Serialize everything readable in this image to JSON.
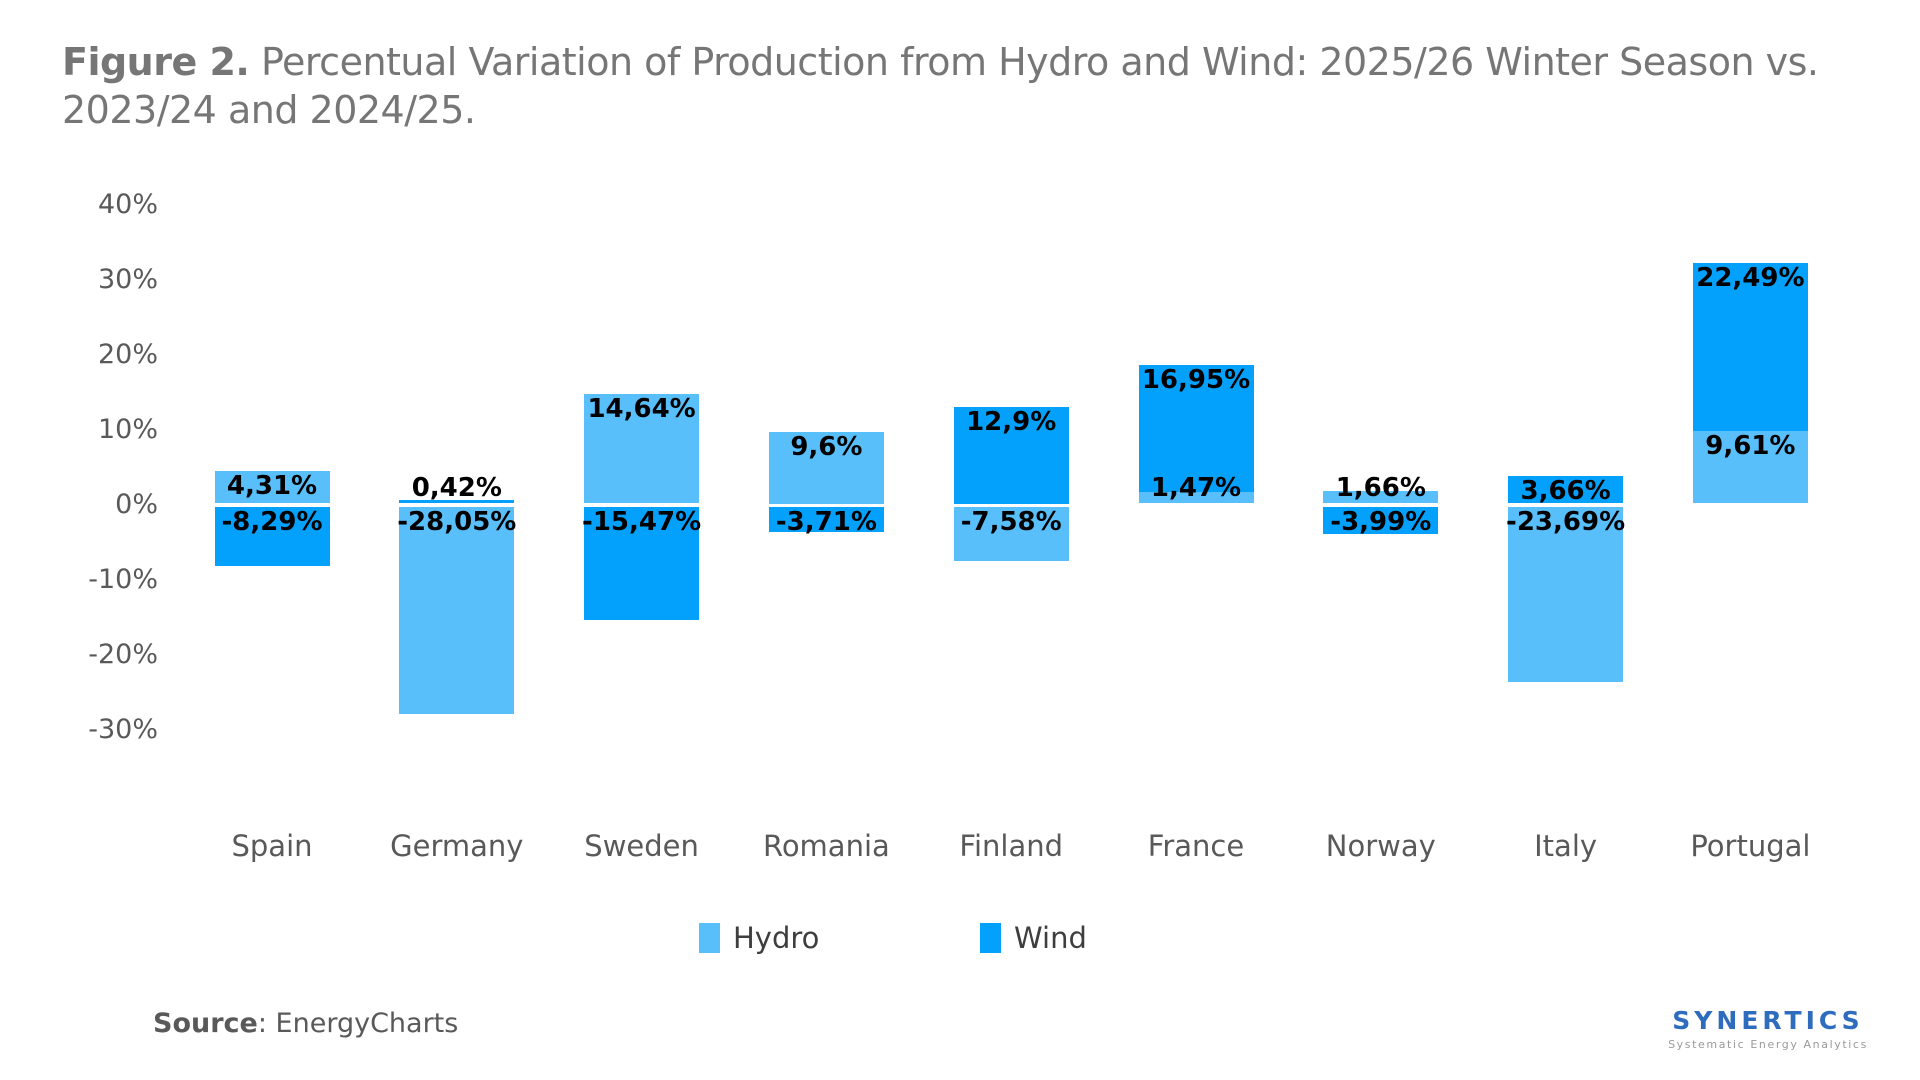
{
  "title": {
    "figure_label": "Figure 2.",
    "text": "Percentual Variation of Production from Hydro and Wind: 2025/26 Winter Season vs. 2023/24 and 2024/25."
  },
  "chart_data": {
    "type": "bar",
    "variant": "diverging-stacked-column",
    "title": "Figure 2. Percentual Variation of Production from Hydro and Wind: 2025/26 Winter Season vs. 2023/24 and 2024/25.",
    "unit": "%",
    "grid": false,
    "legend_position": "bottom",
    "categories": [
      "Spain",
      "Germany",
      "Sweden",
      "Romania",
      "Finland",
      "France",
      "Norway",
      "Italy",
      "Portugal"
    ],
    "series": [
      {
        "name": "Hydro",
        "color": "#58BFFB",
        "values": [
          4.31,
          -28.05,
          14.64,
          9.6,
          -7.58,
          1.47,
          1.66,
          -23.69,
          9.61
        ],
        "labels": [
          "4,31%",
          "-28,05%",
          "14,64%",
          "9,6%",
          "-7,58%",
          "1,47%",
          "1,66%",
          "-23,69%",
          "9,61%"
        ]
      },
      {
        "name": "Wind",
        "color": "#03A0FC",
        "values": [
          -8.29,
          0.42,
          -15.47,
          -3.71,
          12.9,
          16.95,
          -3.99,
          3.66,
          22.49
        ],
        "labels": [
          "-8,29%",
          "0,42%",
          "-15,47%",
          "-3,71%",
          "12,9%",
          "16,95%",
          "-3,99%",
          "3,66%",
          "22,49%"
        ]
      }
    ],
    "yticks": [
      {
        "label": "40%",
        "value": 40
      },
      {
        "label": "30%",
        "value": 30
      },
      {
        "label": "20%",
        "value": 20
      },
      {
        "label": "10%",
        "value": 10
      },
      {
        "label": "0%",
        "value": 0
      },
      {
        "label": "-10%",
        "value": -10
      },
      {
        "label": "-20%",
        "value": -20
      },
      {
        "label": "-30%",
        "value": -30
      }
    ],
    "ylim": [
      -30,
      40
    ],
    "value_label_decimal_separator": ","
  },
  "footer": {
    "source_label": "Source",
    "source_value": ": EnergyCharts",
    "logo_text": "SYNERTICS",
    "logo_subtitle": "Systematic Energy Analytics"
  }
}
